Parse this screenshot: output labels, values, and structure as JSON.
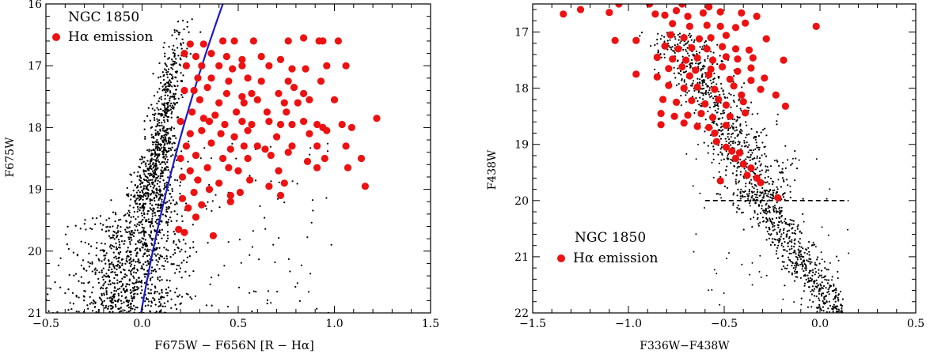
{
  "chart_data": [
    {
      "type": "scatter",
      "xlabel": "F675W − F656N [R − Hα]",
      "ylabel": "F675W",
      "xlim": [
        -0.5,
        1.5
      ],
      "ylim": [
        21,
        16
      ],
      "y_inverted": true,
      "x_ticks": [
        -0.5,
        0.0,
        0.5,
        1.0,
        1.5
      ],
      "x_tick_labels": [
        "−0.5",
        "0.0",
        "0.5",
        "1.0",
        "1.5"
      ],
      "y_ticks": [
        16,
        17,
        18,
        19,
        20,
        21
      ],
      "y_tick_labels": [
        "16",
        "17",
        "18",
        "19",
        "20",
        "21"
      ],
      "cluster_label": "NGC 1850",
      "legend": {
        "label": "Hα emission",
        "color": "#ee1111",
        "placement": "top-left"
      },
      "grid": false,
      "emission_stars": [
        [
          0.25,
          16.65
        ],
        [
          0.32,
          16.65
        ],
        [
          0.42,
          16.6
        ],
        [
          0.48,
          16.6
        ],
        [
          0.58,
          16.6
        ],
        [
          0.76,
          16.6
        ],
        [
          0.84,
          16.55
        ],
        [
          0.92,
          16.6
        ],
        [
          0.94,
          16.6
        ],
        [
          1.02,
          16.6
        ],
        [
          0.22,
          16.8
        ],
        [
          0.28,
          16.85
        ],
        [
          0.36,
          16.8
        ],
        [
          0.44,
          16.85
        ],
        [
          0.52,
          16.9
        ],
        [
          0.62,
          16.85
        ],
        [
          0.72,
          16.9
        ],
        [
          0.23,
          17.0
        ],
        [
          0.31,
          17.0
        ],
        [
          0.4,
          17.0
        ],
        [
          0.47,
          17.05
        ],
        [
          0.52,
          17.0
        ],
        [
          0.66,
          17.0
        ],
        [
          0.78,
          17.05
        ],
        [
          0.85,
          17.05
        ],
        [
          0.96,
          17.0
        ],
        [
          1.06,
          17.0
        ],
        [
          0.29,
          17.2
        ],
        [
          0.36,
          17.2
        ],
        [
          0.45,
          17.25
        ],
        [
          0.55,
          17.2
        ],
        [
          0.62,
          17.25
        ],
        [
          0.76,
          17.25
        ],
        [
          0.79,
          17.35
        ],
        [
          0.93,
          17.25
        ],
        [
          0.22,
          17.4
        ],
        [
          0.27,
          17.4
        ],
        [
          0.34,
          17.35
        ],
        [
          0.44,
          17.45
        ],
        [
          0.52,
          17.5
        ],
        [
          0.57,
          17.45
        ],
        [
          0.71,
          17.45
        ],
        [
          0.84,
          17.45
        ],
        [
          0.3,
          17.55
        ],
        [
          0.4,
          17.6
        ],
        [
          0.53,
          17.6
        ],
        [
          0.6,
          17.55
        ],
        [
          0.74,
          17.6
        ],
        [
          0.81,
          17.6
        ],
        [
          0.87,
          17.55
        ],
        [
          1.0,
          17.55
        ],
        [
          0.26,
          17.75
        ],
        [
          0.38,
          17.8
        ],
        [
          0.49,
          17.75
        ],
        [
          0.65,
          17.75
        ],
        [
          0.75,
          17.75
        ],
        [
          0.2,
          17.9
        ],
        [
          0.32,
          17.85
        ],
        [
          0.35,
          17.9
        ],
        [
          0.43,
          17.95
        ],
        [
          0.52,
          17.9
        ],
        [
          0.57,
          17.95
        ],
        [
          0.66,
          17.9
        ],
        [
          0.72,
          17.95
        ],
        [
          0.78,
          17.95
        ],
        [
          0.84,
          17.9
        ],
        [
          0.91,
          17.95
        ],
        [
          0.94,
          18.0
        ],
        [
          1.04,
          17.95
        ],
        [
          1.09,
          18.0
        ],
        [
          1.22,
          17.85
        ],
        [
          0.25,
          18.1
        ],
        [
          0.31,
          18.05
        ],
        [
          0.41,
          18.1
        ],
        [
          0.48,
          18.15
        ],
        [
          0.55,
          18.05
        ],
        [
          0.7,
          18.15
        ],
        [
          0.87,
          18.1
        ],
        [
          0.96,
          18.05
        ],
        [
          0.23,
          18.3
        ],
        [
          0.36,
          18.25
        ],
        [
          0.46,
          18.35
        ],
        [
          0.53,
          18.3
        ],
        [
          0.6,
          18.3
        ],
        [
          0.64,
          18.35
        ],
        [
          0.78,
          18.3
        ],
        [
          0.91,
          18.3
        ],
        [
          1.06,
          18.3
        ],
        [
          0.2,
          18.5
        ],
        [
          0.28,
          18.45
        ],
        [
          0.42,
          18.5
        ],
        [
          0.55,
          18.5
        ],
        [
          0.67,
          18.45
        ],
        [
          0.76,
          18.4
        ],
        [
          0.86,
          18.55
        ],
        [
          0.95,
          18.5
        ],
        [
          1.14,
          18.5
        ],
        [
          0.25,
          18.7
        ],
        [
          0.34,
          18.65
        ],
        [
          0.45,
          18.65
        ],
        [
          0.5,
          18.7
        ],
        [
          0.71,
          18.7
        ],
        [
          0.91,
          18.65
        ],
        [
          1.07,
          18.65
        ],
        [
          0.21,
          18.8
        ],
        [
          0.29,
          18.85
        ],
        [
          0.4,
          18.9
        ],
        [
          0.56,
          18.85
        ],
        [
          0.66,
          18.95
        ],
        [
          0.74,
          18.9
        ],
        [
          0.27,
          19.05
        ],
        [
          0.35,
          19.0
        ],
        [
          0.46,
          19.1
        ],
        [
          0.51,
          19.05
        ],
        [
          0.72,
          19.1
        ],
        [
          1.16,
          18.95
        ],
        [
          0.21,
          19.15
        ],
        [
          0.24,
          19.3
        ],
        [
          0.31,
          19.25
        ],
        [
          0.46,
          19.2
        ],
        [
          0.28,
          19.45
        ],
        [
          0.19,
          19.65
        ],
        [
          0.22,
          19.7
        ],
        [
          0.37,
          19.75
        ]
      ]
    },
    {
      "type": "scatter",
      "xlabel": "F336W−F438W",
      "ylabel": "F438W",
      "xlim": [
        -1.5,
        0.5
      ],
      "ylim": [
        22,
        16.5
      ],
      "y_inverted": true,
      "x_ticks": [
        -1.5,
        -1.0,
        -0.5,
        0.0,
        0.5
      ],
      "x_tick_labels": [
        "−1.5",
        "−1.0",
        "−0.5",
        "0.0",
        "0.5"
      ],
      "y_ticks": [
        17,
        18,
        19,
        20,
        21,
        22
      ],
      "y_tick_labels": [
        "17",
        "18",
        "19",
        "20",
        "21",
        "22"
      ],
      "cluster_label": "NGC 1850",
      "legend": {
        "label": "Hα emission",
        "color": "#ee1111",
        "placement": "bottom-left"
      },
      "grid": false,
      "reference_line": {
        "y": 20,
        "x_range": [
          -0.6,
          0.15
        ],
        "style": "dashed"
      },
      "emission_stars": [
        [
          -1.34,
          16.68
        ],
        [
          -1.25,
          16.6
        ],
        [
          -1.05,
          16.5
        ],
        [
          -1.1,
          16.65
        ],
        [
          -0.89,
          16.5
        ],
        [
          -0.72,
          16.5
        ],
        [
          -0.58,
          16.55
        ],
        [
          -0.86,
          16.68
        ],
        [
          -0.81,
          16.7
        ],
        [
          -0.75,
          16.62
        ],
        [
          -0.69,
          16.72
        ],
        [
          -0.61,
          16.66
        ],
        [
          -0.52,
          16.64
        ],
        [
          -0.41,
          16.66
        ],
        [
          -0.33,
          16.72
        ],
        [
          -0.77,
          16.85
        ],
        [
          -0.68,
          16.9
        ],
        [
          -0.59,
          16.88
        ],
        [
          -0.52,
          16.9
        ],
        [
          -0.44,
          16.92
        ],
        [
          -0.39,
          16.84
        ],
        [
          -0.02,
          16.9
        ],
        [
          -1.07,
          17.15
        ],
        [
          -0.96,
          17.15
        ],
        [
          -0.78,
          17.05
        ],
        [
          -0.71,
          17.1
        ],
        [
          -0.63,
          17.12
        ],
        [
          -0.57,
          17.1
        ],
        [
          -0.49,
          17.06
        ],
        [
          -0.28,
          17.12
        ],
        [
          -0.81,
          17.25
        ],
        [
          -0.74,
          17.3
        ],
        [
          -0.67,
          17.28
        ],
        [
          -0.59,
          17.3
        ],
        [
          -0.51,
          17.26
        ],
        [
          -0.44,
          17.3
        ],
        [
          -0.37,
          17.32
        ],
        [
          -0.85,
          17.45
        ],
        [
          -0.77,
          17.48
        ],
        [
          -0.7,
          17.5
        ],
        [
          -0.64,
          17.46
        ],
        [
          -0.56,
          17.5
        ],
        [
          -0.49,
          17.44
        ],
        [
          -0.43,
          17.48
        ],
        [
          -0.35,
          17.46
        ],
        [
          -0.19,
          17.5
        ],
        [
          -0.79,
          17.65
        ],
        [
          -0.72,
          17.62
        ],
        [
          -0.65,
          17.68
        ],
        [
          -0.57,
          17.66
        ],
        [
          -0.51,
          17.62
        ],
        [
          -0.43,
          17.7
        ],
        [
          -0.36,
          17.64
        ],
        [
          -0.96,
          17.75
        ],
        [
          -0.85,
          17.8
        ],
        [
          -0.68,
          17.78
        ],
        [
          -0.58,
          17.76
        ],
        [
          -0.47,
          17.84
        ],
        [
          -0.36,
          17.86
        ],
        [
          -0.29,
          17.82
        ],
        [
          -0.79,
          17.95
        ],
        [
          -0.71,
          18.0
        ],
        [
          -0.64,
          17.98
        ],
        [
          -0.55,
          18.02
        ],
        [
          -0.45,
          17.96
        ],
        [
          -0.41,
          18.12
        ],
        [
          -0.31,
          18.02
        ],
        [
          -0.23,
          18.12
        ],
        [
          -0.82,
          18.2
        ],
        [
          -0.75,
          18.25
        ],
        [
          -0.67,
          18.22
        ],
        [
          -0.6,
          18.28
        ],
        [
          -0.53,
          18.2
        ],
        [
          -0.49,
          18.3
        ],
        [
          -0.4,
          18.24
        ],
        [
          -0.18,
          18.32
        ],
        [
          -0.83,
          18.45
        ],
        [
          -0.76,
          18.5
        ],
        [
          -0.69,
          18.48
        ],
        [
          -0.62,
          18.45
        ],
        [
          -0.56,
          18.52
        ],
        [
          -0.47,
          18.5
        ],
        [
          -0.39,
          18.44
        ],
        [
          -0.83,
          18.65
        ],
        [
          -0.71,
          18.62
        ],
        [
          -0.64,
          18.68
        ],
        [
          -0.58,
          18.7
        ],
        [
          -0.49,
          18.66
        ],
        [
          -0.55,
          18.8
        ],
        [
          -0.54,
          18.95
        ],
        [
          -0.49,
          19.05
        ],
        [
          -0.46,
          19.12
        ],
        [
          -0.42,
          19.15
        ],
        [
          -0.44,
          19.25
        ],
        [
          -0.4,
          19.35
        ],
        [
          -0.36,
          19.42
        ],
        [
          -0.38,
          19.55
        ],
        [
          -0.33,
          19.6
        ],
        [
          -0.31,
          19.68
        ],
        [
          -0.52,
          19.65
        ],
        [
          -0.22,
          19.95
        ]
      ]
    }
  ]
}
